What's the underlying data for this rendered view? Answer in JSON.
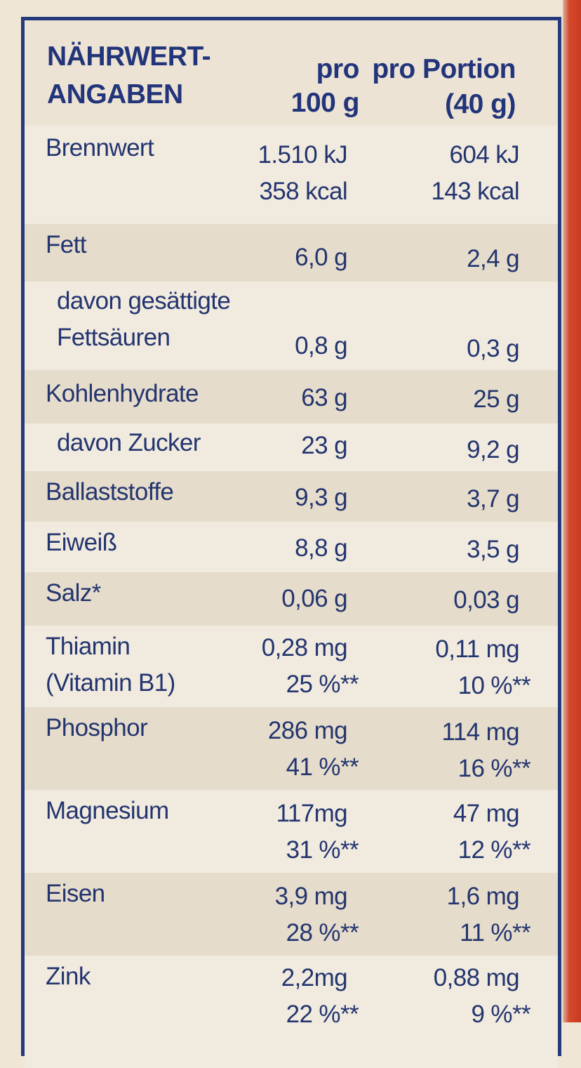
{
  "header": {
    "title_line1": "NÄHRWERT-",
    "title_line2": "ANGABEN",
    "col1_line1": "pro",
    "col1_line2": "100 g",
    "col2_line1": "pro Portion",
    "col2_line2": "(40 g)"
  },
  "rows": [
    {
      "label": [
        "Brennwert"
      ],
      "v100": [
        "1.510 kJ",
        "358 kcal"
      ],
      "vportion": [
        "604 kJ",
        "143 kcal"
      ]
    },
    {
      "label": [
        "Fett"
      ],
      "v100": [
        "6,0 g"
      ],
      "vportion": [
        "2,4 g"
      ]
    },
    {
      "label": [
        "davon gesättigte",
        "Fettsäuren"
      ],
      "v100": [
        "0,8 g"
      ],
      "vportion": [
        "0,3 g"
      ]
    },
    {
      "label": [
        "Kohlenhydrate"
      ],
      "v100": [
        "63 g"
      ],
      "vportion": [
        "25 g"
      ]
    },
    {
      "label": [
        "davon Zucker"
      ],
      "v100": [
        "23 g"
      ],
      "vportion": [
        "9,2 g"
      ]
    },
    {
      "label": [
        "Ballaststoffe"
      ],
      "v100": [
        "9,3 g"
      ],
      "vportion": [
        "3,7 g"
      ]
    },
    {
      "label": [
        "Eiweiß"
      ],
      "v100": [
        "8,8 g"
      ],
      "vportion": [
        "3,5 g"
      ]
    },
    {
      "label": [
        "Salz*"
      ],
      "v100": [
        "0,06 g"
      ],
      "vportion": [
        "0,03 g"
      ]
    },
    {
      "label": [
        "Thiamin",
        "(Vitamin B1)"
      ],
      "v100": [
        "0,28 mg",
        "25 %**"
      ],
      "vportion": [
        "0,11 mg",
        "10 %**"
      ]
    },
    {
      "label": [
        "Phosphor"
      ],
      "v100": [
        "286 mg",
        "41 %**"
      ],
      "vportion": [
        "114 mg",
        "16 %**"
      ]
    },
    {
      "label": [
        "Magnesium"
      ],
      "v100": [
        "117mg",
        "31 %**"
      ],
      "vportion": [
        "47 mg",
        "12 %**"
      ]
    },
    {
      "label": [
        "Eisen"
      ],
      "v100": [
        "3,9 mg",
        "28 %**"
      ],
      "vportion": [
        "1,6 mg",
        "11 %**"
      ]
    },
    {
      "label": [
        "Zink"
      ],
      "v100": [
        "2,2mg",
        "22 %**"
      ],
      "vportion": [
        "0,88 mg",
        "9 %**"
      ]
    }
  ]
}
